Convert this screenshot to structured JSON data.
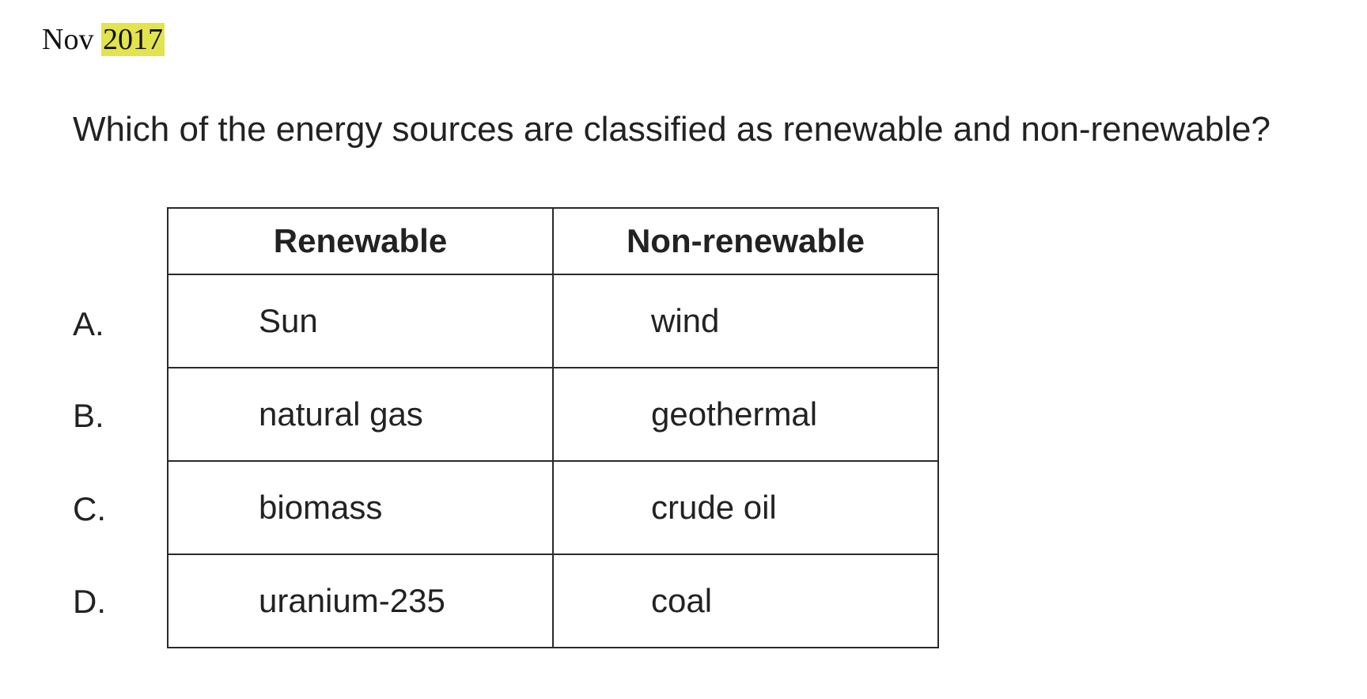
{
  "header": {
    "month": "Nov",
    "year": "2017"
  },
  "question": {
    "text": "Which of the energy sources are classified as renewable and non-renewable?"
  },
  "table": {
    "columns": [
      "Renewable",
      "Non-renewable"
    ],
    "rows": [
      {
        "letter": "A.",
        "renewable": "Sun",
        "non_renewable": "wind"
      },
      {
        "letter": "B.",
        "renewable": "natural gas",
        "non_renewable": "geothermal"
      },
      {
        "letter": "C.",
        "renewable": "biomass",
        "non_renewable": "crude oil"
      },
      {
        "letter": "D.",
        "renewable": "uranium-235",
        "non_renewable": "coal"
      }
    ]
  },
  "colors": {
    "highlight": "#e3e34d",
    "text": "#222222",
    "border": "#2a2a2a"
  }
}
